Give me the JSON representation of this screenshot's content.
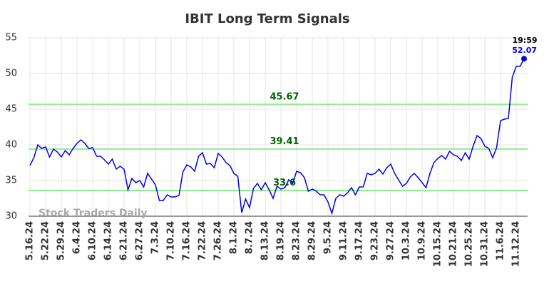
{
  "chart_data": {
    "type": "line",
    "title": "IBIT Long Term Signals",
    "watermark": "Stock Traders Daily",
    "last_label": "19:59",
    "categories": [
      "5.16.24",
      null,
      null,
      null,
      "5.22.24",
      null,
      null,
      null,
      "5.29.24",
      null,
      null,
      null,
      "6.4.24",
      null,
      null,
      null,
      "6.10.24",
      null,
      null,
      null,
      "6.14.24",
      null,
      null,
      null,
      "6.21.24",
      null,
      null,
      null,
      "6.27.24",
      null,
      null,
      null,
      "7.3.24",
      null,
      null,
      null,
      "7.10.24",
      null,
      null,
      null,
      "7.16.24",
      null,
      null,
      null,
      "7.22.24",
      null,
      null,
      null,
      "7.26.24",
      null,
      null,
      null,
      "8.1.24",
      null,
      null,
      null,
      "8.7.24",
      null,
      null,
      null,
      "8.13.24",
      null,
      null,
      null,
      "8.19.24",
      null,
      null,
      null,
      "8.23.24",
      null,
      null,
      null,
      "8.29.24",
      null,
      null,
      null,
      "9.5.24",
      null,
      null,
      null,
      "9.11.24",
      null,
      null,
      null,
      "9.17.24",
      null,
      null,
      null,
      "9.23.24",
      null,
      null,
      null,
      "9.27.24",
      null,
      null,
      null,
      "10.3.24",
      null,
      null,
      null,
      "10.9.24",
      null,
      null,
      null,
      "10.15.24",
      null,
      null,
      null,
      "10.21.24",
      null,
      null,
      null,
      "10.25.24",
      null,
      null,
      null,
      "10.31.24",
      null,
      null,
      null,
      "11.6.24",
      null,
      null,
      null,
      "11.12.24",
      null,
      null
    ],
    "series": [
      {
        "name": "IBIT",
        "color": "#0000ee",
        "values": [
          37.1,
          38.2,
          40.0,
          39.5,
          39.7,
          38.3,
          39.4,
          39.0,
          38.3,
          39.2,
          38.6,
          39.5,
          40.2,
          40.7,
          40.2,
          39.5,
          39.6,
          38.4,
          38.4,
          37.9,
          37.3,
          38.0,
          36.6,
          37.0,
          36.6,
          33.7,
          35.3,
          34.7,
          35.0,
          34.1,
          36.0,
          35.2,
          34.4,
          32.2,
          32.2,
          33.0,
          32.7,
          32.7,
          32.9,
          36.2,
          37.2,
          36.9,
          36.3,
          38.4,
          38.9,
          37.3,
          37.4,
          36.8,
          38.8,
          38.3,
          37.5,
          37.1,
          36.0,
          35.6,
          30.5,
          32.4,
          31.2,
          33.9,
          34.6,
          33.7,
          34.7,
          33.7,
          32.5,
          34.2,
          33.8,
          34.0,
          35.1,
          34.6,
          36.3,
          36.1,
          35.4,
          33.5,
          33.8,
          33.5,
          33.0,
          33.0,
          32.0,
          30.4,
          32.5,
          33.0,
          32.8,
          33.3,
          34.0,
          33.0,
          34.1,
          34.1,
          36.0,
          35.8,
          36.0,
          36.6,
          35.9,
          36.8,
          37.3,
          36.0,
          35.1,
          34.2,
          34.6,
          35.5,
          36.0,
          35.4,
          34.7,
          34.0,
          36.0,
          37.5,
          38.1,
          38.5,
          38.0,
          39.1,
          38.6,
          38.4,
          37.8,
          38.9,
          38.0,
          39.8,
          41.3,
          40.9,
          39.8,
          39.5,
          38.2,
          39.6,
          43.4,
          43.6,
          43.7,
          49.5,
          51.0,
          51.0,
          52.07
        ]
      }
    ],
    "hlines": [
      45.67,
      39.41,
      33.6
    ],
    "hline_color": "#90ee90",
    "hline_label_color": "#006400",
    "ylim": [
      30,
      55
    ],
    "yticks": [
      30,
      35,
      40,
      45,
      50,
      55
    ],
    "grid": true
  }
}
